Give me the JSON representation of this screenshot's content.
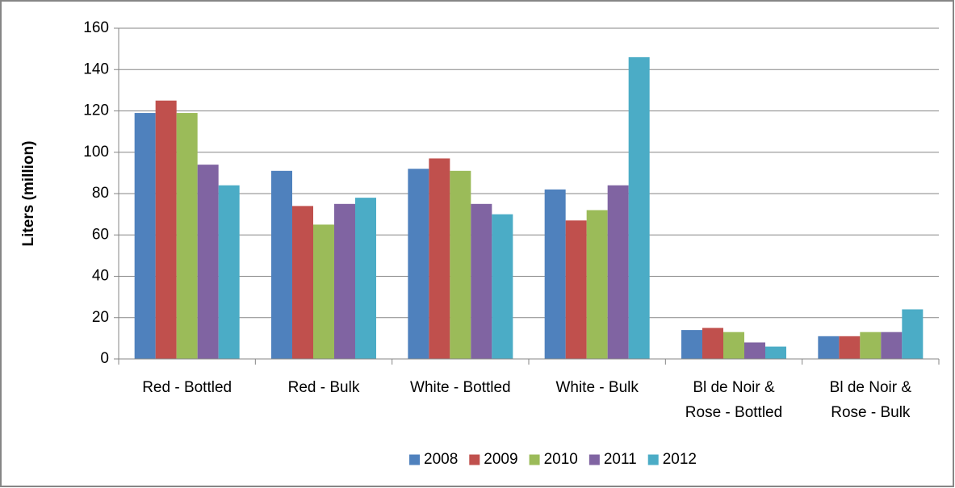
{
  "chart_data": {
    "type": "bar",
    "y_label": "Liters (million)",
    "categories": [
      "Red - Bottled",
      "Red - Bulk",
      "White - Bottled",
      "White - Bulk",
      "Bl de Noir & Rose - Bottled",
      "Bl de Noir & Rose - Bulk"
    ],
    "series": [
      {
        "name": "2008",
        "color": "#4f81bd",
        "values": [
          119,
          91,
          92,
          82,
          14,
          11
        ]
      },
      {
        "name": "2009",
        "color": "#c0504d",
        "values": [
          125,
          74,
          97,
          67,
          15,
          11
        ]
      },
      {
        "name": "2010",
        "color": "#9bbb59",
        "values": [
          119,
          65,
          91,
          72,
          13,
          13
        ]
      },
      {
        "name": "2011",
        "color": "#8064a2",
        "values": [
          94,
          75,
          75,
          84,
          8,
          13
        ]
      },
      {
        "name": "2012",
        "color": "#4bacc6",
        "values": [
          84,
          78,
          70,
          146,
          6,
          24
        ]
      }
    ],
    "ylim": [
      0,
      160
    ],
    "yticks": [
      0,
      20,
      40,
      60,
      80,
      100,
      120,
      140,
      160
    ],
    "grid": true,
    "legend": "bottom"
  }
}
